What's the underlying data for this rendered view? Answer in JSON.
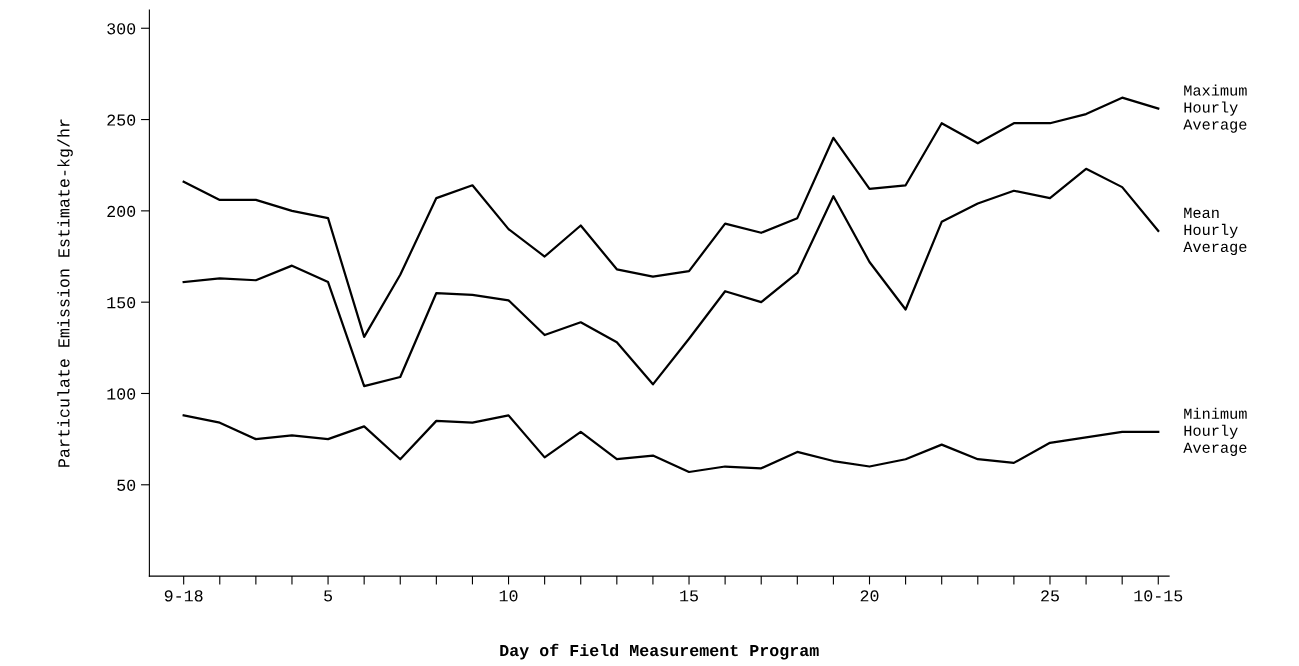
{
  "chart_data": {
    "type": "line",
    "xlabel": "Day of Field Measurement Program",
    "ylabel": "Particulate Emission Estimate-kg/hr",
    "x": [
      1,
      2,
      3,
      4,
      5,
      6,
      7,
      8,
      9,
      10,
      11,
      12,
      13,
      14,
      15,
      16,
      17,
      18,
      19,
      20,
      21,
      22,
      23,
      24,
      25,
      26,
      27,
      28
    ],
    "series": [
      {
        "name": "Maximum\nHourly\nAverage",
        "color": "#000000",
        "values": [
          216,
          206,
          206,
          200,
          196,
          131,
          165,
          207,
          214,
          190,
          175,
          192,
          168,
          164,
          167,
          193,
          188,
          196,
          240,
          212,
          214,
          248,
          237,
          248,
          248,
          253,
          262,
          256
        ]
      },
      {
        "name": "Mean\nHourly\nAverage",
        "color": "#000000",
        "values": [
          161,
          163,
          162,
          170,
          161,
          104,
          109,
          155,
          154,
          151,
          132,
          139,
          128,
          105,
          130,
          156,
          150,
          166,
          208,
          172,
          146,
          194,
          204,
          211,
          207,
          223,
          213,
          189
        ]
      },
      {
        "name": "Minimum\nHourly\nAverage",
        "color": "#000000",
        "values": [
          88,
          84,
          75,
          77,
          75,
          82,
          64,
          85,
          84,
          88,
          65,
          79,
          64,
          66,
          57,
          60,
          59,
          68,
          63,
          60,
          64,
          72,
          64,
          62,
          73,
          76,
          79,
          79
        ]
      }
    ],
    "xlim": [
      0.05,
      28.3
    ],
    "ylim": [
      0,
      310
    ],
    "xticks": [
      {
        "value": 1,
        "label": "9-18"
      },
      {
        "value": 2,
        "label": null
      },
      {
        "value": 3,
        "label": null
      },
      {
        "value": 4,
        "label": null
      },
      5,
      {
        "value": 6,
        "label": null
      },
      {
        "value": 7,
        "label": null
      },
      {
        "value": 8,
        "label": null
      },
      {
        "value": 9,
        "label": null
      },
      10,
      {
        "value": 11,
        "label": null
      },
      {
        "value": 12,
        "label": null
      },
      {
        "value": 13,
        "label": null
      },
      {
        "value": 14,
        "label": null
      },
      15,
      {
        "value": 16,
        "label": null
      },
      {
        "value": 17,
        "label": null
      },
      {
        "value": 18,
        "label": null
      },
      {
        "value": 19,
        "label": null
      },
      20,
      {
        "value": 21,
        "label": null
      },
      {
        "value": 22,
        "label": null
      },
      {
        "value": 23,
        "label": null
      },
      {
        "value": 24,
        "label": null
      },
      25,
      {
        "value": 26,
        "label": null
      },
      {
        "value": 27,
        "label": null
      },
      {
        "value": 28,
        "label": "10-15"
      }
    ],
    "yticks": [
      50,
      100,
      150,
      200,
      250,
      300
    ],
    "grid": false,
    "legend": false,
    "marker": "none",
    "line_style": "solid"
  }
}
